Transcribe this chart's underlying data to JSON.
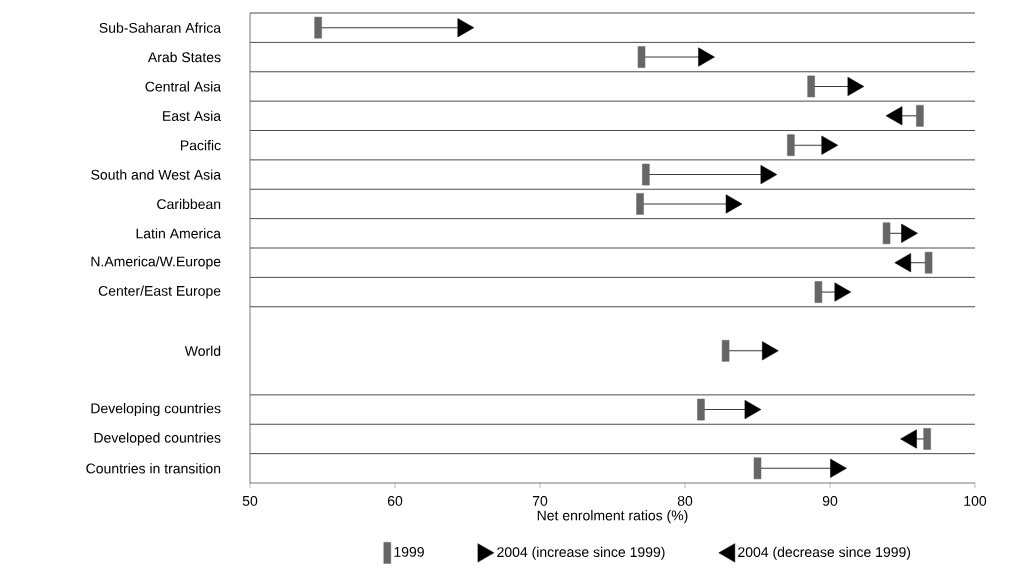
{
  "chart_data": {
    "type": "scatter",
    "orientation": "horizontal",
    "categories": [
      "Sub-Saharan Africa",
      "Arab States",
      "Central Asia",
      "East Asia",
      "Pacific",
      "South and West Asia",
      "Caribbean",
      "Latin America",
      "N.America/W.Europe",
      "Center/East Europe",
      null,
      "World",
      null,
      "Developing countries",
      "Developed countries",
      "Countries in transition"
    ],
    "series": [
      {
        "name": "1999",
        "color": "#666666",
        "marker": "square",
        "values": [
          54.7,
          77.0,
          88.7,
          96.2,
          87.3,
          77.3,
          76.9,
          93.9,
          96.8,
          89.2,
          null,
          82.8,
          null,
          81.1,
          96.7,
          85.0
        ]
      },
      {
        "name": "2004 (increase since 1999)",
        "color": "#000000",
        "marker": "triangle",
        "values": [
          64.7,
          81.3,
          91.6,
          null,
          89.8,
          85.6,
          83.2,
          95.3,
          null,
          90.7,
          null,
          85.7,
          null,
          84.5,
          null,
          90.4
        ]
      },
      {
        "name": "2004 (decrease since 1999)",
        "color": "#000000",
        "marker": "triangle",
        "values": [
          null,
          null,
          null,
          94.6,
          null,
          null,
          null,
          null,
          95.2,
          null,
          null,
          null,
          null,
          null,
          95.6,
          null
        ]
      }
    ],
    "xlabel": "Net enrolment ratios (%)",
    "xlim": [
      50,
      100
    ],
    "xticks": [
      50,
      60,
      70,
      80,
      90,
      100
    ],
    "grid": "y",
    "legend": "bottom"
  }
}
